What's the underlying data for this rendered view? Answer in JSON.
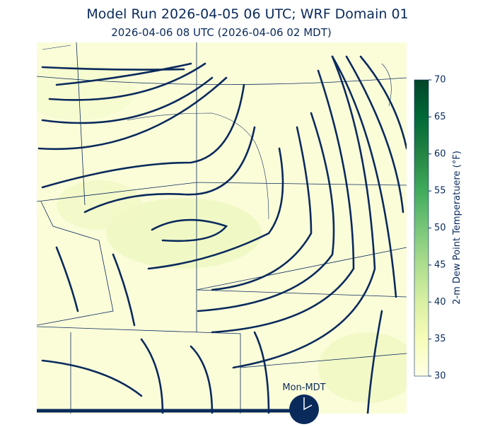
{
  "title": "Model Run 2026-04-05 06 UTC; WRF Domain 01",
  "subtitle": "2026-04-06 08 UTC  (2026-04-06 02 MDT)",
  "colorbar": {
    "label": "2-m Dew Point Temperatuere (°F)",
    "lim": [
      30,
      70
    ],
    "ticks": [
      30,
      35,
      40,
      45,
      50,
      55,
      60,
      65,
      70
    ],
    "colors": [
      "#ffffe5",
      "#f7fcb9",
      "#d9f0a3",
      "#addd8e",
      "#78c679",
      "#41ab5d",
      "#238443",
      "#006837",
      "#004529"
    ]
  },
  "clock": {
    "label": "Mon-MDT"
  }
}
